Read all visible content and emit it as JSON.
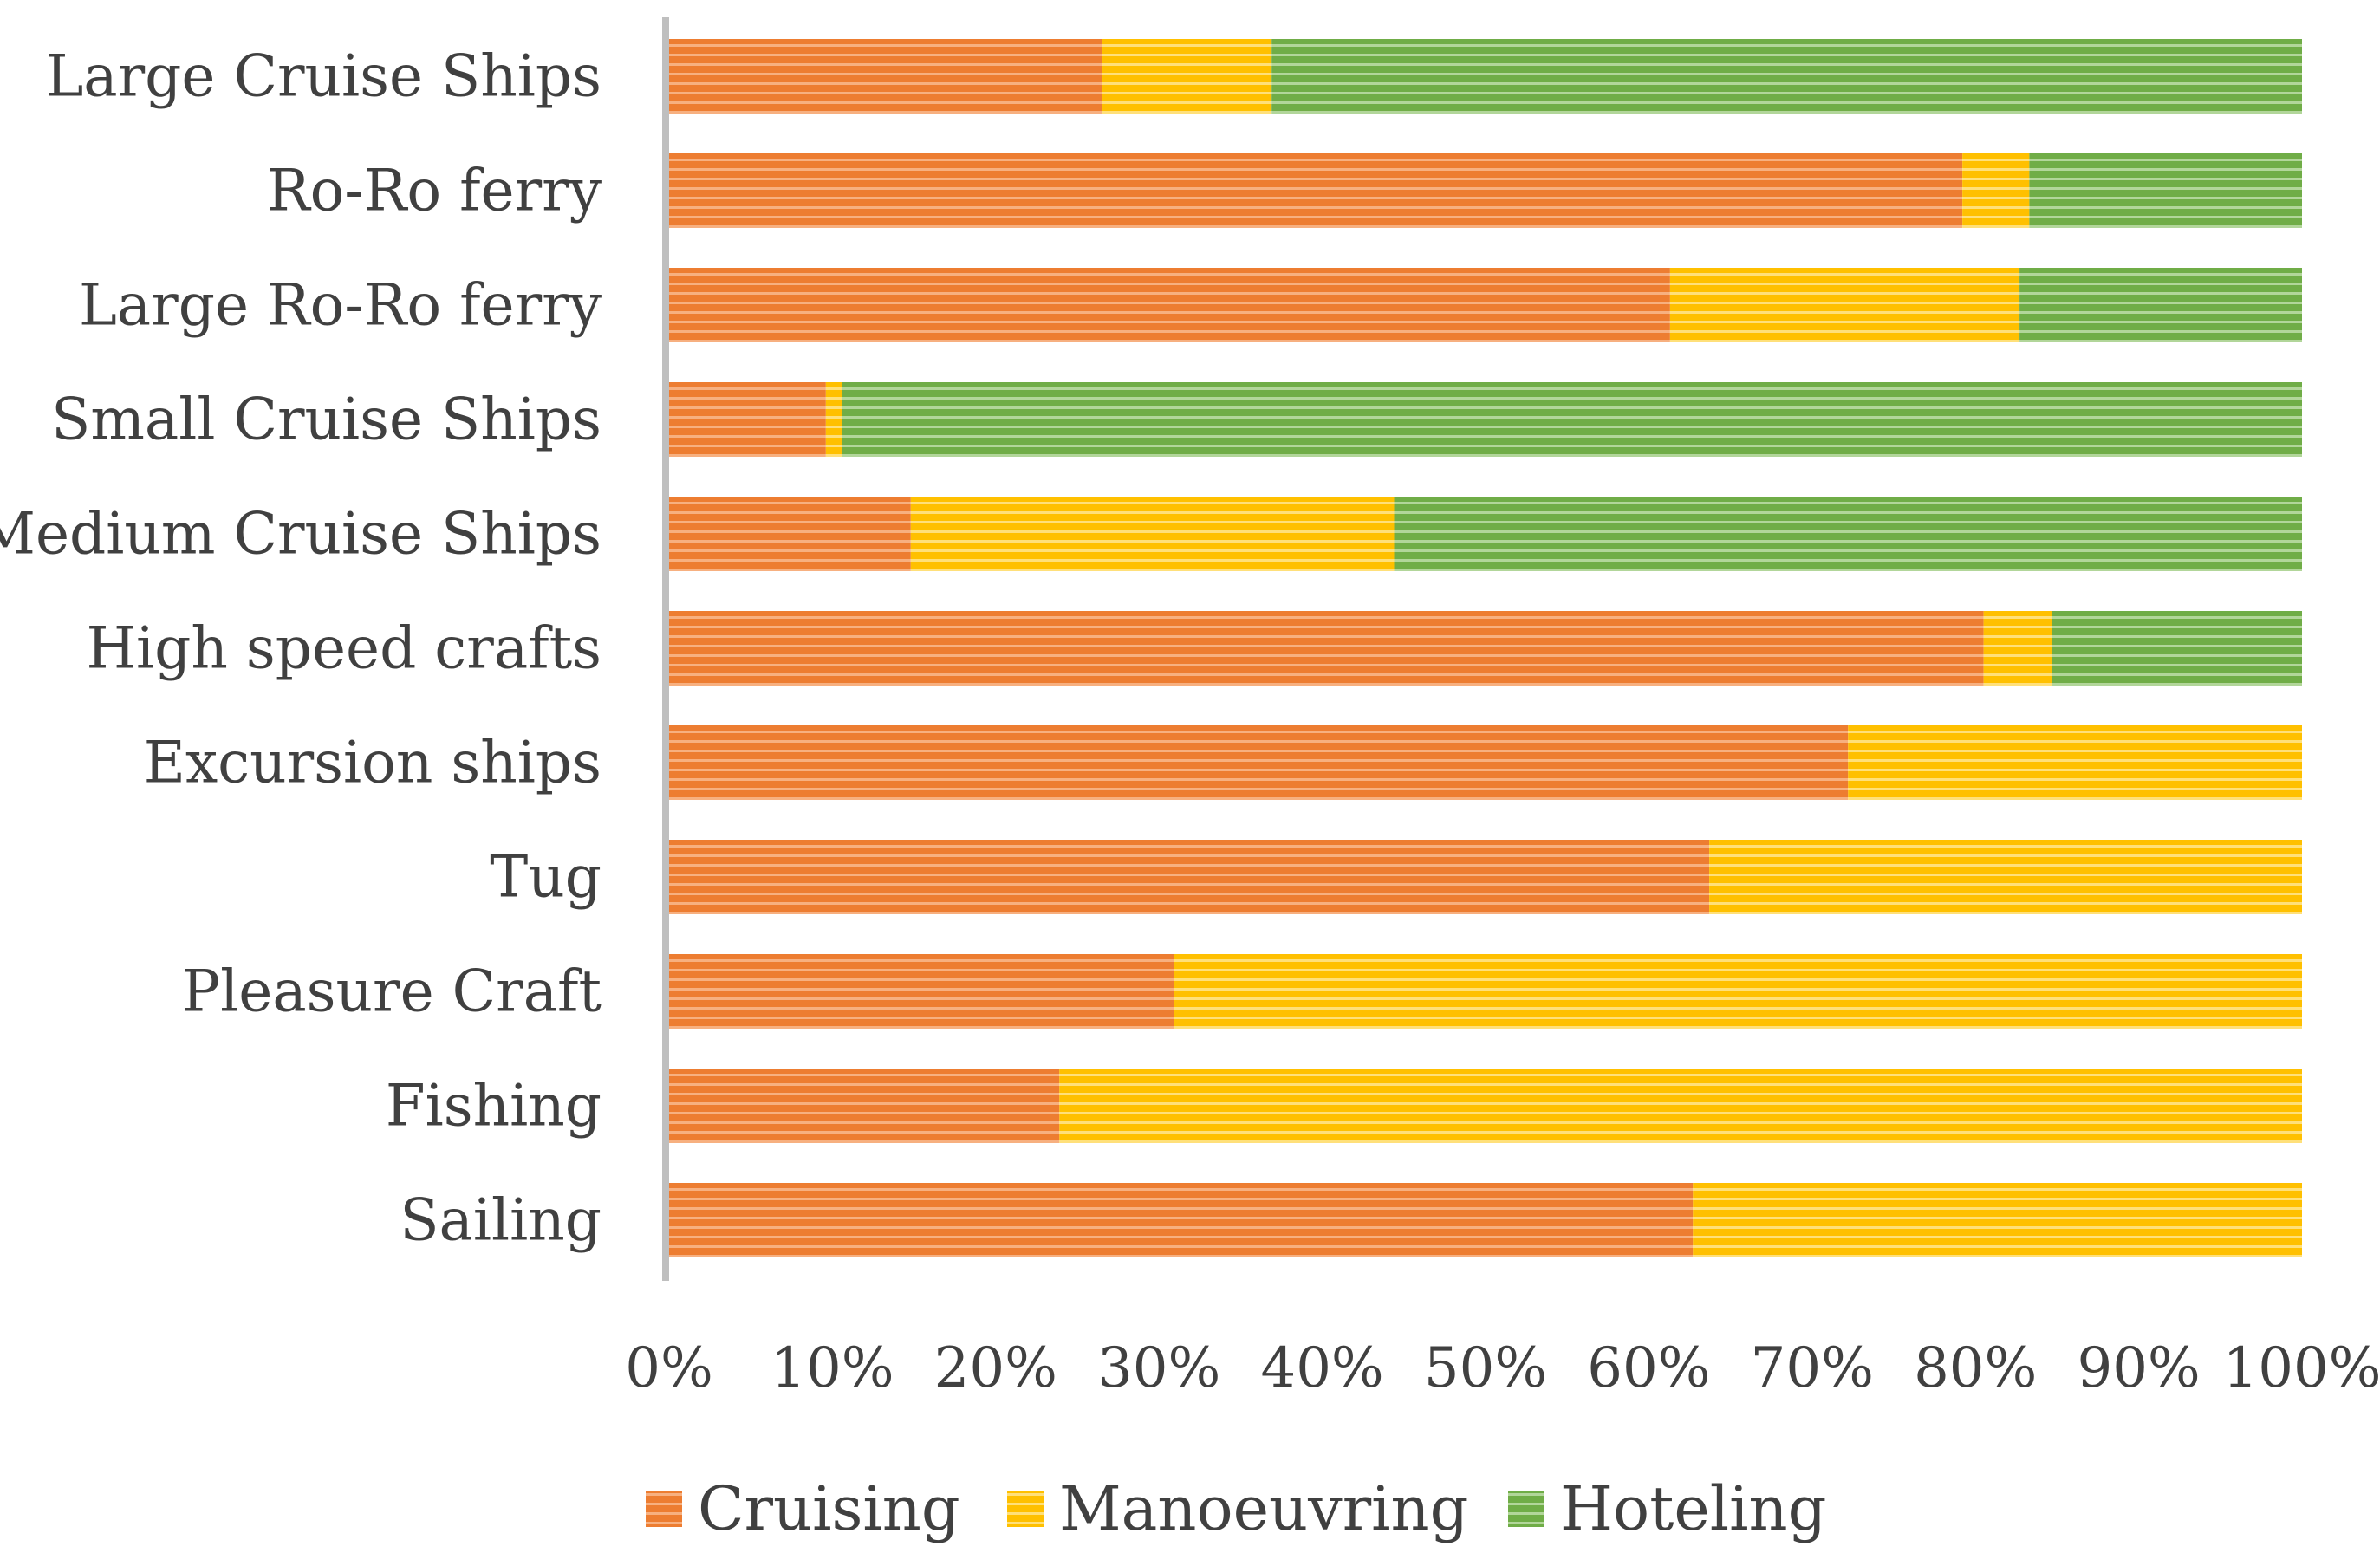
{
  "chart_data": {
    "type": "bar",
    "orientation": "horizontal",
    "stacked": "percent",
    "title": "",
    "xlabel": "",
    "ylabel": "",
    "xlim": [
      0,
      100
    ],
    "grid": false,
    "legend_position": "bottom",
    "categories": [
      "Large Cruise Ships",
      "Ro-Ro ferry",
      "Large Ro-Ro ferry",
      "Small Cruise Ships",
      "Medium Cruise Ships",
      "High speed crafts",
      "Excursion ships",
      "Tug",
      "Pleasure Craft",
      "Fishing",
      "Sailing"
    ],
    "series": [
      {
        "name": "Cruising",
        "color": "#ED7D31",
        "values": [
          26.5,
          79.2,
          61.3,
          9.6,
          14.8,
          80.5,
          72.2,
          63.7,
          30.9,
          23.9,
          62.7
        ]
      },
      {
        "name": "Manoeuvring",
        "color": "#FFC000",
        "values": [
          10.4,
          4.1,
          21.4,
          1.0,
          29.6,
          4.2,
          27.8,
          36.3,
          69.1,
          76.1,
          37.3
        ]
      },
      {
        "name": "Hoteling",
        "color": "#70AD47",
        "values": [
          63.1,
          16.7,
          17.3,
          89.4,
          55.6,
          15.3,
          0,
          0,
          0,
          0,
          0
        ]
      }
    ],
    "x_ticks": [
      "0%",
      "10%",
      "20%",
      "30%",
      "40%",
      "50%",
      "60%",
      "70%",
      "80%",
      "90%",
      "100%"
    ]
  }
}
